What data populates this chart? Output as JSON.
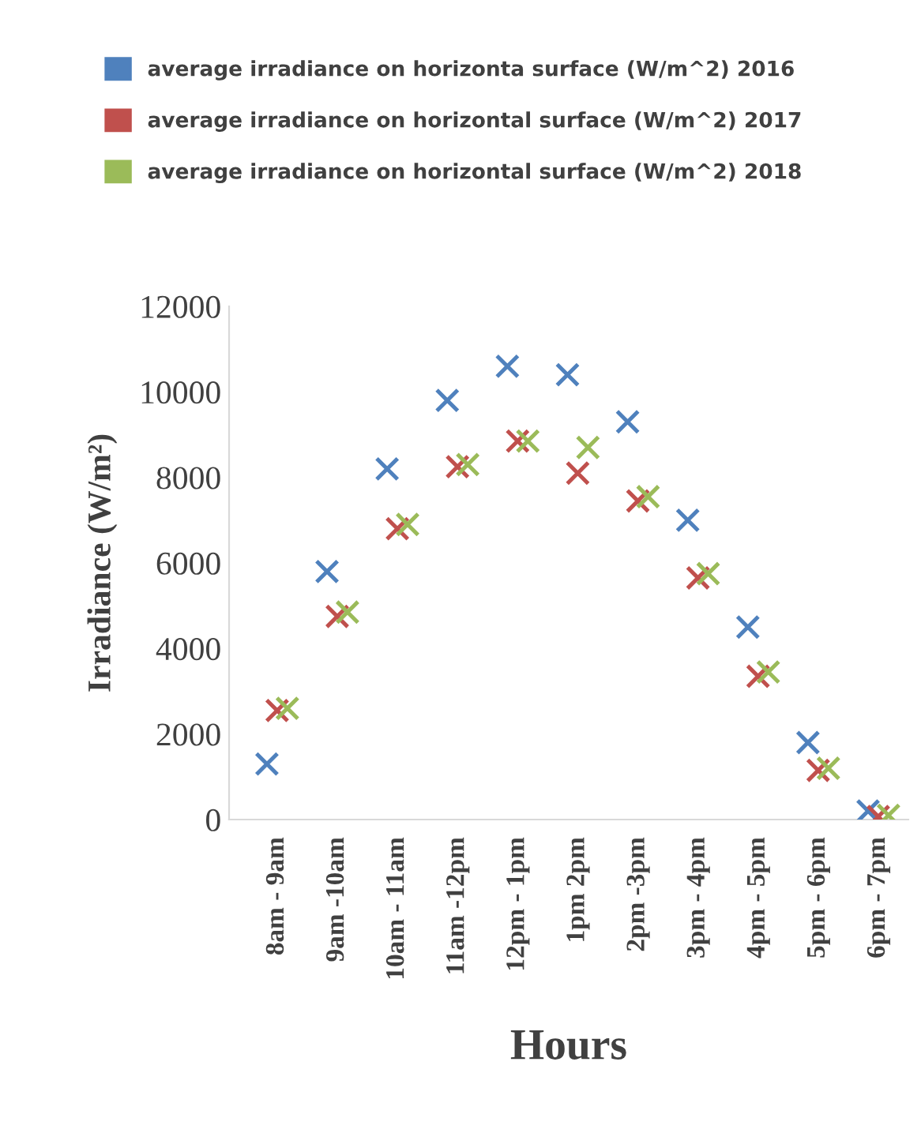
{
  "chart_data": {
    "type": "scatter",
    "xlabel": "Hours",
    "ylabel": "Irradiance (W/m²)",
    "categories": [
      "8am - 9am",
      "9am -10am",
      "10am - 11am",
      "11am -12pm",
      "12pm - 1pm",
      "1pm 2pm",
      "2pm -3pm",
      "3pm - 4pm",
      "4pm - 5pm",
      "5pm - 6pm",
      "6pm - 7pm"
    ],
    "series": [
      {
        "name": "average irradiance on horizonta surface (W/m^2) 2016",
        "color": "#4f81bd",
        "values": [
          1300,
          5800,
          8200,
          9800,
          10600,
          10400,
          9300,
          7000,
          4500,
          1800,
          200
        ]
      },
      {
        "name": "average irradiance on horizontal surface (W/m^2) 2017",
        "color": "#c0504d",
        "values": [
          2550,
          4750,
          6800,
          8250,
          8850,
          8100,
          7450,
          5650,
          3350,
          1150,
          70
        ]
      },
      {
        "name": "average irradiance on horizontal surface (W/m^2) 2018",
        "color": "#9bbb59",
        "values": [
          2600,
          4850,
          6900,
          8300,
          8850,
          8700,
          7550,
          5750,
          3450,
          1200,
          100
        ]
      }
    ],
    "ylim": [
      0,
      12000
    ],
    "yticks": [
      0,
      2000,
      4000,
      6000,
      8000,
      10000,
      12000
    ],
    "grid": false,
    "legend": "top",
    "marker": "cross"
  }
}
